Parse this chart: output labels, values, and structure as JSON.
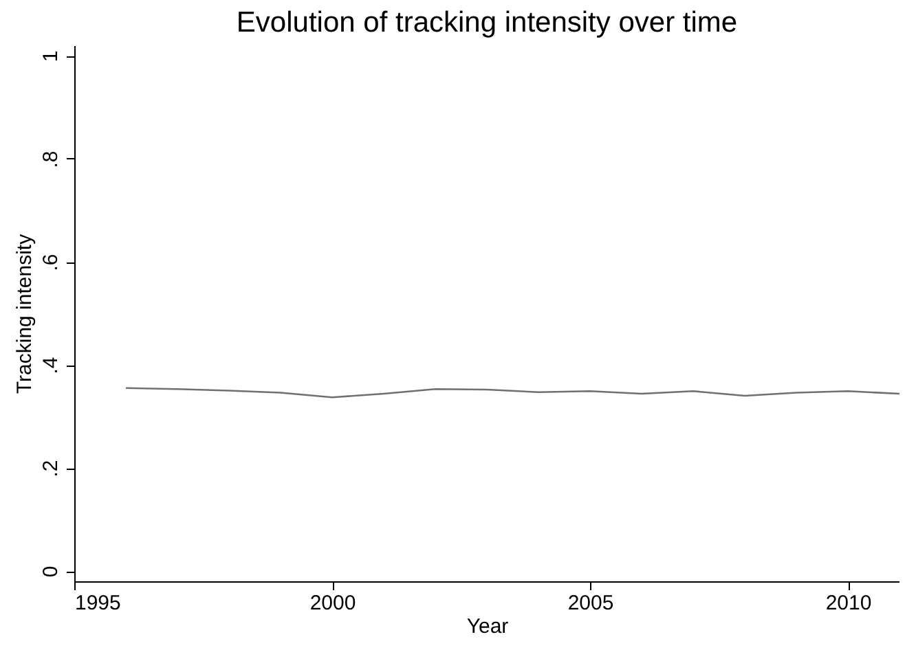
{
  "chart_data": {
    "type": "line",
    "title": "Evolution of tracking intensity over time",
    "xlabel": "Year",
    "ylabel": "Tracking intensity",
    "x": [
      1996,
      1997,
      1998,
      1999,
      2000,
      2001,
      2002,
      2003,
      2004,
      2005,
      2006,
      2007,
      2008,
      2009,
      2010,
      2011
    ],
    "series": [
      {
        "color": "#707070",
        "values": [
          0.355,
          0.353,
          0.35,
          0.346,
          0.337,
          0.344,
          0.353,
          0.352,
          0.347,
          0.349,
          0.344,
          0.349,
          0.34,
          0.346,
          0.349,
          0.344
        ]
      }
    ],
    "xlim": [
      1995,
      2011
    ],
    "xticks": [
      1995,
      2000,
      2005,
      2010
    ],
    "ylim": [
      -0.02,
      1.02
    ],
    "yticks": [
      0,
      {
        "value": 0.2,
        "label": ".2"
      },
      {
        "value": 0.4,
        "label": ".4"
      },
      {
        "value": 0.6,
        "label": ".6"
      },
      {
        "value": 0.8,
        "label": ".8"
      },
      1
    ],
    "grid": false,
    "marker": "none",
    "line_style": "solid"
  }
}
